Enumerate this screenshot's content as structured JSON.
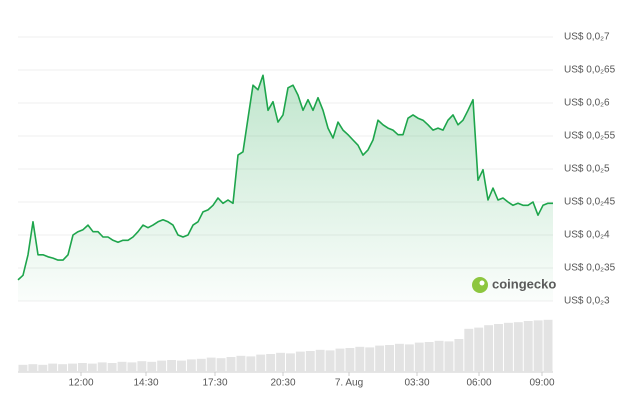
{
  "chart_data": {
    "type": "line",
    "color": "#1ea54c",
    "xlim": [
      0,
      107
    ],
    "xticks": [
      {
        "value": 12.6,
        "label": "12:00"
      },
      {
        "value": 25.6,
        "label": "14:30"
      },
      {
        "value": 39.4,
        "label": "17:30"
      },
      {
        "value": 53,
        "label": "20:30"
      },
      {
        "value": 66.2,
        "label": "7. Aug"
      },
      {
        "value": 79.8,
        "label": "03:30"
      },
      {
        "value": 92.2,
        "label": "06:00"
      },
      {
        "value": 104.8,
        "label": "09:00"
      }
    ],
    "ylim": [
      0.003,
      0.007
    ],
    "yticks": [
      {
        "value": 0.003,
        "label": "US$ 0,0₂3"
      },
      {
        "value": 0.0035,
        "label": "US$ 0,0₂35"
      },
      {
        "value": 0.004,
        "label": "US$ 0,0₂4"
      },
      {
        "value": 0.0045,
        "label": "US$ 0,0₂45"
      },
      {
        "value": 0.005,
        "label": "US$ 0,0₂5"
      },
      {
        "value": 0.0055,
        "label": "US$ 0,0₂55"
      },
      {
        "value": 0.006,
        "label": "US$ 0,0₂6"
      },
      {
        "value": 0.0065,
        "label": "US$ 0,0₂65"
      },
      {
        "value": 0.007,
        "label": "US$ 0,0₂7"
      }
    ],
    "grid": true,
    "values": [
      0.00332,
      0.00339,
      0.0037,
      0.0042,
      0.0037,
      0.0037,
      0.00367,
      0.00365,
      0.00362,
      0.00362,
      0.0037,
      0.004,
      0.00405,
      0.00408,
      0.00415,
      0.00405,
      0.00405,
      0.00397,
      0.00397,
      0.00392,
      0.00389,
      0.00392,
      0.00392,
      0.00397,
      0.00405,
      0.00415,
      0.00411,
      0.00415,
      0.0042,
      0.00423,
      0.0042,
      0.00415,
      0.004,
      0.00397,
      0.004,
      0.00415,
      0.0042,
      0.00435,
      0.00438,
      0.00445,
      0.00456,
      0.00448,
      0.00453,
      0.00448,
      0.00521,
      0.00526,
      0.00577,
      0.00627,
      0.0062,
      0.00642,
      0.00589,
      0.00602,
      0.00571,
      0.00582,
      0.00623,
      0.00627,
      0.00612,
      0.00589,
      0.00605,
      0.00589,
      0.00608,
      0.00589,
      0.00562,
      0.00547,
      0.00571,
      0.00559,
      0.00552,
      0.00544,
      0.00536,
      0.00521,
      0.00529,
      0.00544,
      0.00574,
      0.00567,
      0.00562,
      0.00559,
      0.00552,
      0.00552,
      0.00577,
      0.00582,
      0.00577,
      0.00574,
      0.00567,
      0.00559,
      0.00562,
      0.00559,
      0.00574,
      0.00582,
      0.00567,
      0.00574,
      0.00589,
      0.00605,
      0.00483,
      0.00499,
      0.00453,
      0.00471,
      0.00453,
      0.00456,
      0.0045,
      0.00445,
      0.00448,
      0.00445,
      0.00445,
      0.0045,
      0.0043,
      0.00445,
      0.00448,
      0.00448
    ],
    "volume": {
      "color": "#e3e3e3",
      "ylim": [
        0,
        100
      ],
      "values": [
        12,
        13,
        12,
        14,
        13,
        14,
        15,
        14,
        16,
        15,
        17,
        16,
        18,
        17,
        19,
        20,
        19,
        21,
        22,
        24,
        23,
        25,
        27,
        26,
        29,
        30,
        32,
        31,
        34,
        35,
        37,
        36,
        39,
        40,
        42,
        41,
        44,
        45,
        47,
        46,
        49,
        50,
        52,
        51,
        55,
        72,
        74,
        78,
        80,
        82,
        83,
        85,
        86,
        87
      ]
    },
    "watermark": "coingecko"
  }
}
